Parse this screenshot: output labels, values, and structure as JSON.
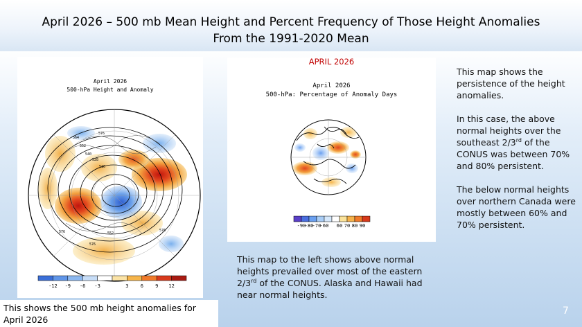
{
  "slide": {
    "title_line1": "April 2026 – 500 mb Mean Height and Percent Frequency of Those Height Anomalies",
    "title_line2": "From the  1991-2020 Mean",
    "page_number": "7"
  },
  "left_map": {
    "title_line1": "April 2026",
    "title_line2": "500-hPa Height and Anomaly",
    "contour_labels": [
      "576",
      "564",
      "552",
      "540",
      "528",
      "516",
      "552",
      "576",
      "576",
      "576"
    ],
    "colorbar": {
      "colors": [
        "#3b6fd8",
        "#5f95e8",
        "#8cb8f0",
        "#c7ddf7",
        "#ffffff",
        "#fbe3a6",
        "#f6b54b",
        "#f07a2a",
        "#d83a1c",
        "#a81a12"
      ],
      "tick_labels": [
        "-12",
        "-9",
        "-6",
        "-3",
        "3",
        "6",
        "9",
        "12"
      ]
    }
  },
  "left_caption": {
    "line1": "This shows the 500 mb height anomalies for",
    "line2": "April 2026"
  },
  "center_map": {
    "heading": "APRIL 2026",
    "title_line1": "April 2026",
    "title_line2": "500-hPa: Percentage of Anomaly Days",
    "colorbar": {
      "colors": [
        "#5a3fc8",
        "#4a6fe0",
        "#6aa0f0",
        "#a9cdf6",
        "#d6e8fb",
        "#ffffff",
        "#fbe39a",
        "#f6b24a",
        "#f07a2a",
        "#d83a1c"
      ],
      "tick_labels": [
        "-90",
        "-80",
        "-70",
        "-60",
        "60",
        "70",
        "80",
        "90"
      ]
    }
  },
  "center_caption": {
    "line1": "This map to the left shows above normal",
    "line2": "heights prevailed over most of the eastern",
    "line3_pre": "2/3",
    "line3_sup": "rd",
    "line3_post": " of the CONUS. Alaska and Hawaii had",
    "line4": "near normal heights."
  },
  "right_text": {
    "p1": [
      "This map shows the",
      "persistence of the height",
      "anomalies."
    ],
    "p2_lines": [
      "In this case, the above",
      "normal heights over the"
    ],
    "p2_pre": "southeast 2/3",
    "p2_sup": "rd",
    "p2_post": " of the",
    "p2_rest": [
      "CONUS was between 70%",
      "and 80% persistent."
    ],
    "p3": [
      "The below normal heights",
      "over northern Canada were",
      "mostly between 60% and",
      "70% persistent."
    ]
  }
}
